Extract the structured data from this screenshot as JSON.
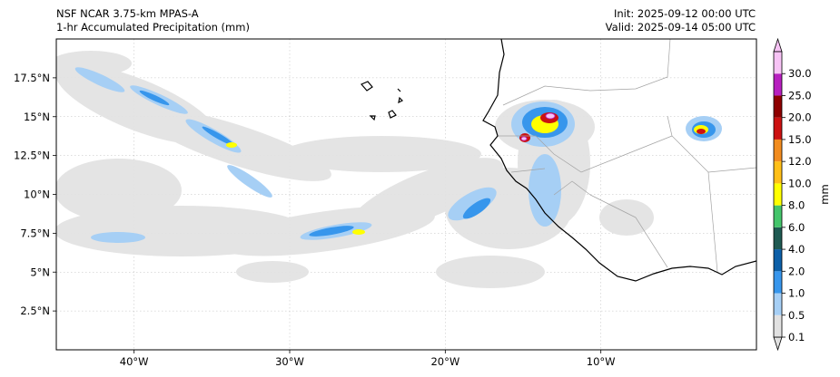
{
  "header": {
    "model_title": "NSF NCAR 3.75-km MPAS-A",
    "field_title": "1-hr Accumulated Precipitation (mm)",
    "init_text": "Init: 2025-09-12 00:00 UTC",
    "valid_text": "Valid: 2025-09-14 05:00 UTC"
  },
  "map": {
    "lon_range": [
      -45,
      0
    ],
    "lat_range": [
      0,
      20
    ],
    "lat_ticks": [
      {
        "value": 2.5,
        "label": "2.5°N"
      },
      {
        "value": 5,
        "label": "5°N"
      },
      {
        "value": 7.5,
        "label": "7.5°N"
      },
      {
        "value": 10,
        "label": "10°N"
      },
      {
        "value": 12.5,
        "label": "12.5°N"
      },
      {
        "value": 15,
        "label": "15°N"
      },
      {
        "value": 17.5,
        "label": "17.5°N"
      }
    ],
    "lon_ticks": [
      {
        "value": -40,
        "label": "40°W"
      },
      {
        "value": -30,
        "label": "30°W"
      },
      {
        "value": -20,
        "label": "20°W"
      },
      {
        "value": -10,
        "label": "10°W"
      }
    ],
    "grid": true,
    "coastline_color": "#000000",
    "border_color": "#999999"
  },
  "colorbar": {
    "unit": "mm",
    "levels": [
      "0.1",
      "0.5",
      "1.0",
      "2.0",
      "4.0",
      "6.0",
      "8.0",
      "10.0",
      "12.0",
      "15.0",
      "20.0",
      "25.0",
      "30.0"
    ],
    "colors": [
      "#e1e1e1",
      "#a6cff5",
      "#3796ec",
      "#0c5fa8",
      "#1f5a52",
      "#44c56b",
      "#ffff00",
      "#ffbf17",
      "#f28c1f",
      "#cc1111",
      "#8e0000",
      "#b71fbf",
      "#f7c3f5"
    ],
    "extend": "both"
  }
}
